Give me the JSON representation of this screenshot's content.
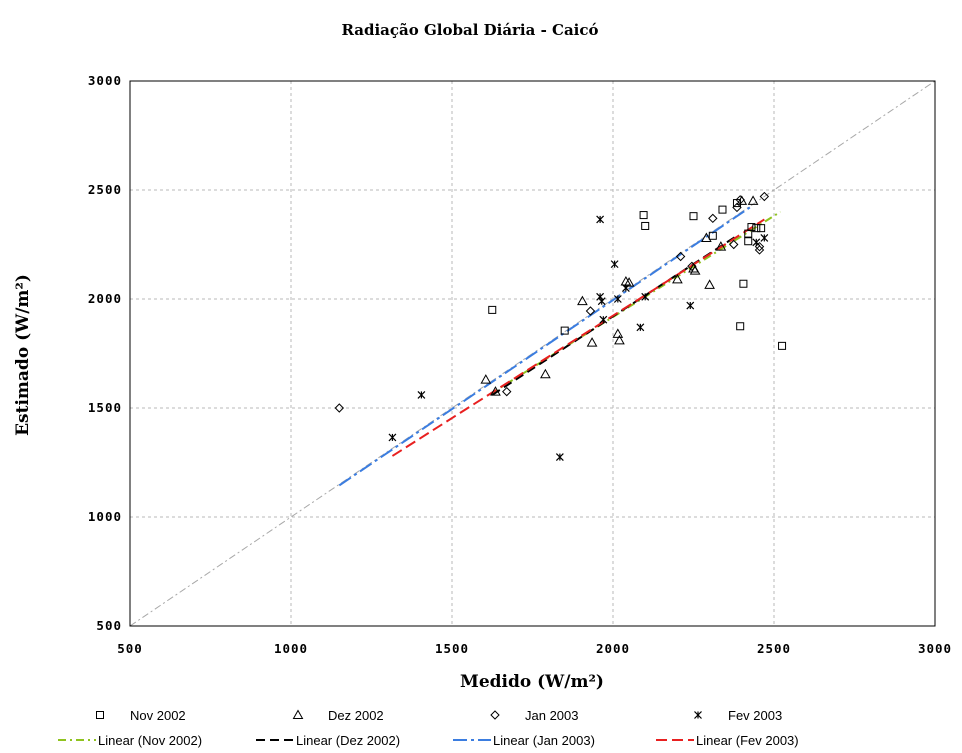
{
  "chart_data": {
    "type": "scatter",
    "title": "Radiação Global Diária - Caicó",
    "xlabel": "Medido (W/m²)",
    "ylabel": "Estimado (W/m²)",
    "xlim": [
      500,
      3000
    ],
    "ylim": [
      500,
      3000
    ],
    "x_ticks": [
      "500",
      "1000",
      "1500",
      "2000",
      "2500",
      "3000"
    ],
    "y_ticks": [
      "500",
      "1000",
      "1500",
      "2000",
      "2500",
      "3000"
    ],
    "grid": true,
    "legend_position": "bottom",
    "reference_line": {
      "x": [
        500,
        3000
      ],
      "y": [
        500,
        3000
      ],
      "color": "#a8a8a8"
    },
    "series": [
      {
        "name": "Nov 2002",
        "marker": "square",
        "points": [
          [
            1625,
            1950
          ],
          [
            1850,
            1855
          ],
          [
            2095,
            2385
          ],
          [
            2100,
            2335
          ],
          [
            2250,
            2380
          ],
          [
            2310,
            2290
          ],
          [
            2340,
            2410
          ],
          [
            2385,
            2440
          ],
          [
            2395,
            1875
          ],
          [
            2405,
            2070
          ],
          [
            2420,
            2300
          ],
          [
            2420,
            2265
          ],
          [
            2430,
            2330
          ],
          [
            2445,
            2325
          ],
          [
            2460,
            2325
          ],
          [
            2525,
            1785
          ]
        ]
      },
      {
        "name": "Dez 2002",
        "marker": "triangle",
        "points": [
          [
            1605,
            1630
          ],
          [
            1635,
            1575
          ],
          [
            1790,
            1655
          ],
          [
            1905,
            1990
          ],
          [
            1935,
            1800
          ],
          [
            2015,
            1840
          ],
          [
            2020,
            1810
          ],
          [
            2040,
            2080
          ],
          [
            2050,
            2075
          ],
          [
            2200,
            2090
          ],
          [
            2250,
            2140
          ],
          [
            2255,
            2130
          ],
          [
            2290,
            2280
          ],
          [
            2300,
            2065
          ],
          [
            2335,
            2240
          ],
          [
            2400,
            2450
          ],
          [
            2435,
            2450
          ]
        ]
      },
      {
        "name": "Jan 2003",
        "marker": "circle",
        "points": [
          [
            1150,
            1500
          ],
          [
            1670,
            1575
          ],
          [
            1930,
            1945
          ],
          [
            2210,
            2195
          ],
          [
            2245,
            2150
          ],
          [
            2310,
            2370
          ],
          [
            2375,
            2250
          ],
          [
            2385,
            2420
          ],
          [
            2395,
            2455
          ],
          [
            2455,
            2240
          ],
          [
            2455,
            2225
          ],
          [
            2470,
            2470
          ]
        ]
      },
      {
        "name": "Fev 2003",
        "marker": "star",
        "points": [
          [
            1315,
            1365
          ],
          [
            1405,
            1560
          ],
          [
            1835,
            1275
          ],
          [
            1960,
            2365
          ],
          [
            1960,
            2010
          ],
          [
            1965,
            1990
          ],
          [
            1970,
            1905
          ],
          [
            2005,
            2160
          ],
          [
            2015,
            2000
          ],
          [
            2040,
            2050
          ],
          [
            2085,
            1870
          ],
          [
            2100,
            2010
          ],
          [
            2240,
            1970
          ],
          [
            2445,
            2260
          ],
          [
            2470,
            2280
          ]
        ]
      }
    ],
    "trendlines": [
      {
        "name": "Linear (Nov 2002)",
        "color": "#8fc31f",
        "dash": "8 4 2 4",
        "x": [
          1620,
          2520
        ],
        "y": [
          1565,
          2400
        ]
      },
      {
        "name": "Linear (Dez 2002)",
        "color": "#000000",
        "dash": "9 5",
        "x": [
          1625,
          2390
        ],
        "y": [
          1560,
          2295
        ]
      },
      {
        "name": "Linear (Jan 2003)",
        "color": "#3b7de0",
        "dash": "14 4 3 4",
        "x": [
          1150,
          2425
        ],
        "y": [
          1145,
          2420
        ]
      },
      {
        "name": "Linear (Fev 2003)",
        "color": "#e82020",
        "dash": "11 5",
        "x": [
          1315,
          2470
        ],
        "y": [
          1280,
          2365
        ]
      }
    ]
  }
}
